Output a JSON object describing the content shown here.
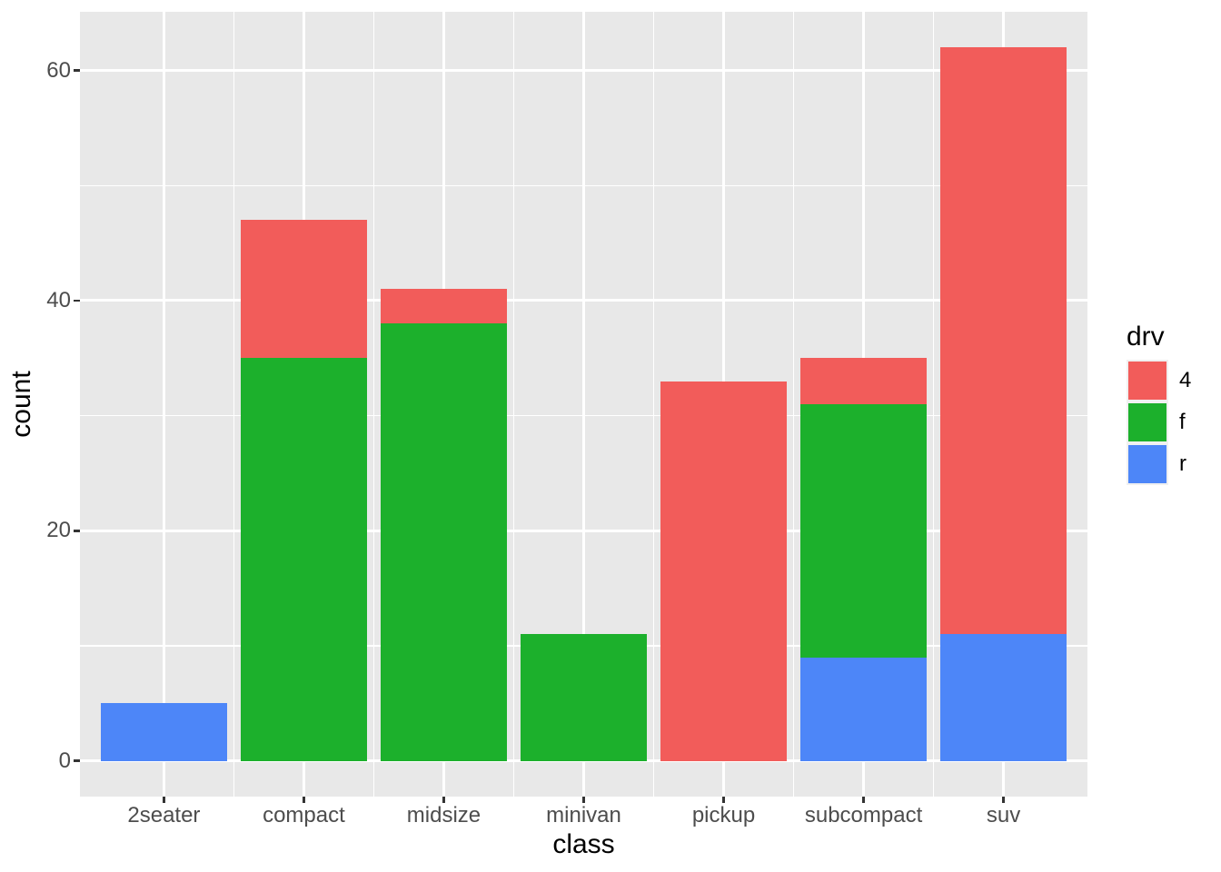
{
  "chart_data": {
    "type": "bar",
    "stacked": true,
    "title": "",
    "xlabel": "class",
    "ylabel": "count",
    "legend_title": "drv",
    "legend_position": "right",
    "categories": [
      "2seater",
      "compact",
      "midsize",
      "minivan",
      "pickup",
      "subcompact",
      "suv"
    ],
    "series": [
      {
        "name": "4",
        "color": "#F25C5A",
        "values": [
          0,
          12,
          3,
          0,
          33,
          4,
          51
        ]
      },
      {
        "name": "f",
        "color": "#1CB02C",
        "values": [
          0,
          35,
          38,
          11,
          0,
          22,
          0
        ]
      },
      {
        "name": "r",
        "color": "#4D86F8",
        "values": [
          5,
          0,
          0,
          0,
          0,
          9,
          11
        ]
      }
    ],
    "stack_totals": [
      5,
      47,
      41,
      11,
      33,
      35,
      62
    ],
    "ylim": [
      0,
      62
    ],
    "y_major_breaks": [
      0,
      20,
      40,
      60
    ],
    "y_minor_breaks": [
      10,
      30,
      50
    ],
    "y_tick_labels": [
      "0",
      "20",
      "40",
      "60"
    ],
    "grid": true,
    "colors": {
      "panel_bg": "#E8E8E8",
      "grid": "#FFFFFF",
      "tick_mark": "#333333",
      "tick_label": "#4D4D4D",
      "axis_title": "#000000",
      "legend_key_bg": "#F0F0F0",
      "page_bg": "#FFFFFF"
    }
  }
}
